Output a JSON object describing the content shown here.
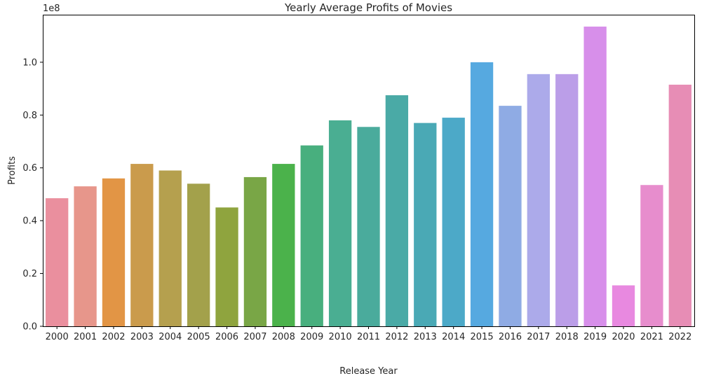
{
  "chart_data": {
    "type": "bar",
    "title": "Yearly Average Profits of Movies",
    "xlabel": "Release Year",
    "ylabel": "Profits",
    "y_offset_label": "1e8",
    "y_scale": 100000000,
    "ylim": [
      0,
      118000000
    ],
    "y_ticks": [
      0,
      20000000,
      40000000,
      60000000,
      80000000,
      100000000
    ],
    "y_tick_labels": [
      "0.0",
      "0.2",
      "0.4",
      "0.6",
      "0.8",
      "1.0"
    ],
    "grid": false,
    "categories": [
      "2000",
      "2001",
      "2002",
      "2003",
      "2004",
      "2005",
      "2006",
      "2007",
      "2008",
      "2009",
      "2010",
      "2011",
      "2012",
      "2013",
      "2014",
      "2015",
      "2016",
      "2017",
      "2018",
      "2019",
      "2020",
      "2021",
      "2022"
    ],
    "values": [
      48500000,
      53000000,
      56000000,
      61500000,
      59000000,
      54000000,
      45000000,
      56500000,
      61500000,
      68500000,
      78000000,
      75500000,
      87500000,
      77000000,
      79000000,
      100000000,
      83500000,
      95500000,
      95500000,
      113500000,
      15500000,
      53500000,
      91500000
    ],
    "colors": [
      "#ea8f9e",
      "#e7968b",
      "#e29545",
      "#ca9b4c",
      "#b5a04e",
      "#a3a14b",
      "#8fa43e",
      "#79a646",
      "#4bb24b",
      "#48af7e",
      "#4aae92",
      "#4aab9c",
      "#4aaaa6",
      "#4aa9b5",
      "#4ca9c8",
      "#56a9e0",
      "#8fabe4",
      "#acaaea",
      "#bb9ee8",
      "#d78fea",
      "#e889e0",
      "#e78dcd",
      "#e78db5"
    ]
  }
}
